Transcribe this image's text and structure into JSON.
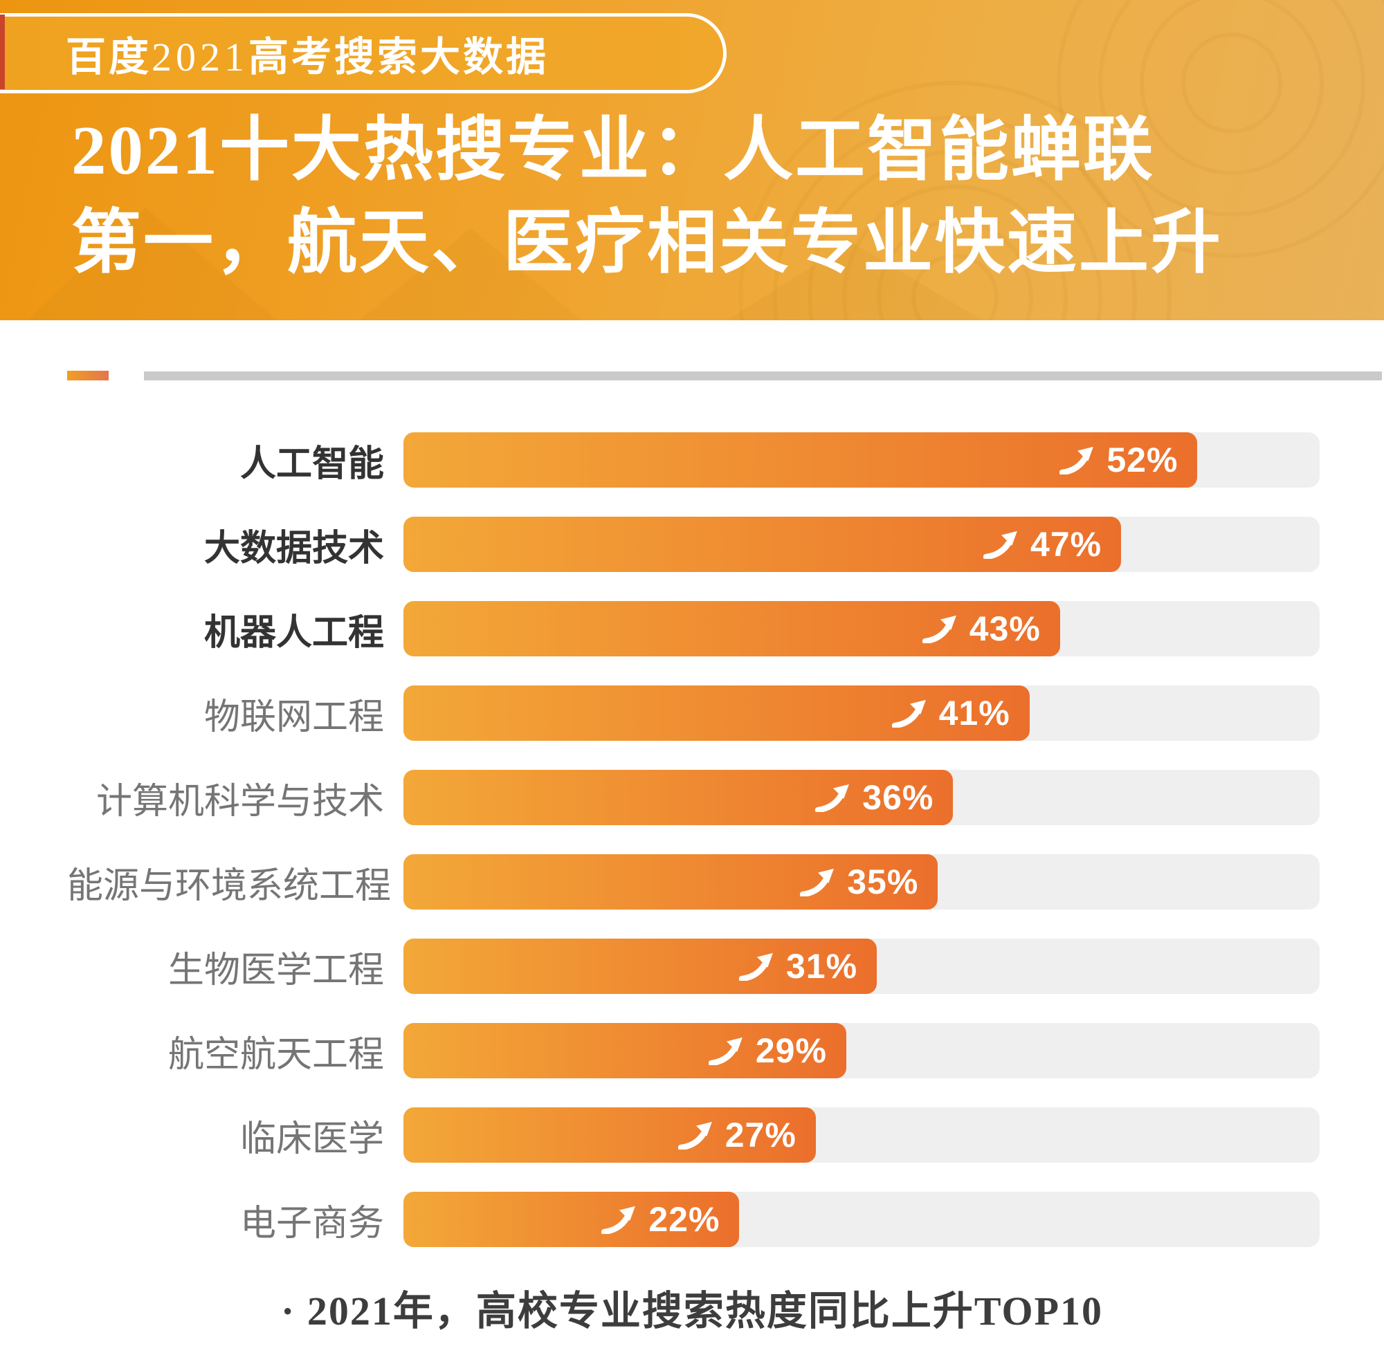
{
  "badge": {
    "prefix": "百度",
    "year": "2021",
    "suffix": "高考搜索大数据"
  },
  "title": {
    "line1": "2021十大热搜专业：人工智能蝉联",
    "line2": "第一，航天、医疗相关专业快速上升"
  },
  "footer": {
    "note": "· 2021年，高校专业搜索热度同比上升TOP10"
  },
  "colors": {
    "header_gradient_start": "#ED9511",
    "header_gradient_end": "#E9B158",
    "badge_fill": "#F1A72B",
    "bar_gradient_start": "#F3A838",
    "bar_gradient_end": "#EB6F2C",
    "track": "#EFEFEF",
    "divider_line": "#CACACA",
    "divider_dash_start": "#F09E25",
    "divider_dash_end": "#E4764B",
    "label_bold": "#333333",
    "label_regular": "#757575",
    "value_text": "#FFFFFF",
    "footer_text": "#3D3D3D"
  },
  "chart_data": {
    "type": "bar",
    "orientation": "horizontal",
    "title": "2021十大热搜专业：人工智能蝉联第一，航天、医疗相关专业快速上升",
    "categories": [
      "人工智能",
      "大数据技术",
      "机器人工程",
      "物联网工程",
      "计算机科学与技术",
      "能源与环境系统工程",
      "生物医学工程",
      "航空航天工程",
      "临床医学",
      "电子商务"
    ],
    "values": [
      52,
      47,
      43,
      41,
      36,
      35,
      31,
      29,
      27,
      22
    ],
    "value_suffix": "%",
    "bold_count": 3,
    "xlim": [
      0,
      60
    ],
    "grid": false,
    "legend": false,
    "value_icon": "trend-up-arrow",
    "source_note": "· 2021年，高校专业搜索热度同比上升TOP10"
  }
}
